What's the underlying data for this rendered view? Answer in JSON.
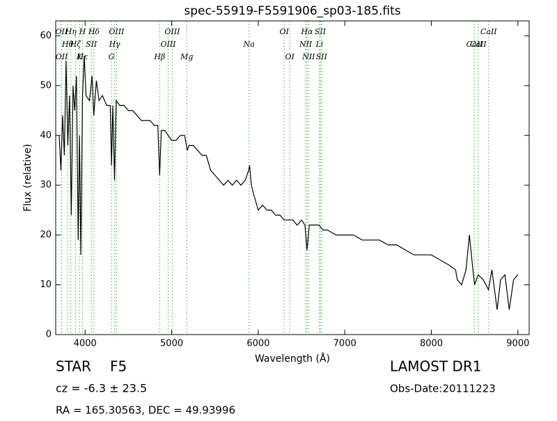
{
  "chart_data": {
    "type": "line",
    "title": "spec-55919-F5591906_sp03-185.fits",
    "x_label": "Wavelength (Å)",
    "y_label": "Flux (relative)",
    "xlim": [
      3660,
      9130
    ],
    "ylim": [
      0,
      63
    ],
    "xticks": [
      4000,
      5000,
      6000,
      7000,
      8000,
      9000
    ],
    "yticks": [
      0,
      10,
      20,
      30,
      40,
      50,
      60
    ],
    "series": [
      {
        "color": "#000000",
        "x": [
          3700,
          3720,
          3740,
          3760,
          3780,
          3800,
          3820,
          3840,
          3860,
          3880,
          3900,
          3920,
          3935,
          3950,
          3970,
          3990,
          4010,
          4050,
          4080,
          4100,
          4130,
          4160,
          4200,
          4250,
          4290,
          4305,
          4320,
          4340,
          4360,
          4400,
          4450,
          4500,
          4550,
          4600,
          4650,
          4700,
          4750,
          4800,
          4840,
          4861,
          4880,
          4920,
          4960,
          5000,
          5050,
          5100,
          5150,
          5180,
          5200,
          5250,
          5300,
          5350,
          5400,
          5450,
          5500,
          5550,
          5600,
          5650,
          5700,
          5750,
          5800,
          5850,
          5890,
          5900,
          5920,
          5950,
          6000,
          6050,
          6100,
          6150,
          6200,
          6250,
          6300,
          6350,
          6400,
          6450,
          6500,
          6540,
          6563,
          6590,
          6650,
          6700,
          6750,
          6800,
          6900,
          7000,
          7100,
          7200,
          7300,
          7400,
          7500,
          7600,
          7700,
          7800,
          7900,
          8000,
          8100,
          8200,
          8280,
          8300,
          8350,
          8400,
          8440,
          8480,
          8500,
          8540,
          8600,
          8660,
          8700,
          8760,
          8800,
          8850,
          8900,
          8950,
          9000
        ],
        "values": [
          40,
          33,
          44,
          36,
          55,
          38,
          48,
          24,
          50,
          45,
          52,
          19,
          40,
          16,
          48,
          56,
          48,
          47,
          52,
          44,
          51,
          47,
          48,
          46,
          46,
          34,
          46,
          31,
          47,
          46,
          46,
          45,
          45,
          44,
          43,
          43,
          43,
          42,
          42,
          32,
          41,
          41,
          40,
          39,
          39,
          40,
          40,
          37,
          38,
          38,
          37,
          36,
          36,
          33,
          32,
          31,
          30,
          31,
          30,
          31,
          30,
          31,
          33,
          34,
          30,
          28,
          25,
          26,
          25,
          25,
          24,
          24,
          23,
          23,
          23,
          22,
          23,
          22,
          17,
          22,
          22,
          22,
          21,
          21,
          20,
          20,
          20,
          19,
          19,
          19,
          18,
          18,
          17,
          16,
          16,
          16,
          15,
          14,
          13,
          11,
          10,
          13,
          20,
          13,
          10,
          12,
          11,
          9,
          13,
          5,
          11,
          12,
          5,
          11,
          12
        ]
      }
    ],
    "lines_color": "#5cb85c",
    "lines": [
      {
        "label": "OII",
        "x": 3727
      },
      {
        "label": "Hθ",
        "x": 3798
      },
      {
        "label": "OII",
        "x": 3729
      },
      {
        "label": "Hη",
        "x": 3835
      },
      {
        "label": "Hζ",
        "x": 3889
      },
      {
        "label": "K",
        "x": 3934
      },
      {
        "label": "H",
        "x": 3969
      },
      {
        "label": "SII",
        "x": 4072
      },
      {
        "label": "Hε",
        "x": 3970
      },
      {
        "label": "Hδ",
        "x": 4102
      },
      {
        "label": "Hγ",
        "x": 4341
      },
      {
        "label": "G",
        "x": 4305
      },
      {
        "label": "OIII",
        "x": 4363
      },
      {
        "label": "OIII",
        "x": 4959
      },
      {
        "label": "Hβ",
        "x": 4861
      },
      {
        "label": "OIII",
        "x": 5007
      },
      {
        "label": "Na",
        "x": 5894
      },
      {
        "label": "Mg",
        "x": 5175
      },
      {
        "label": "OI",
        "x": 6300
      },
      {
        "label": "NII",
        "x": 6548
      },
      {
        "label": "OI",
        "x": 6364
      },
      {
        "label": "Hα",
        "x": 6563
      },
      {
        "label": "Li",
        "x": 6708
      },
      {
        "label": "NII",
        "x": 6583
      },
      {
        "label": "SII",
        "x": 6716
      },
      {
        "label": "CaII",
        "x": 8542
      },
      {
        "label": "SII",
        "x": 6731
      },
      {
        "label": "CaII",
        "x": 8662
      },
      {
        "label": "CaII",
        "x": 8498
      }
    ],
    "info": {
      "class": "STAR",
      "subclass": "F5",
      "cz": "cz = -6.3 ± 23.5",
      "coords": "RA = 165.30563, DEC = 49.93996",
      "survey": "LAMOST DR1",
      "date": "Obs-Date:20111223"
    }
  }
}
